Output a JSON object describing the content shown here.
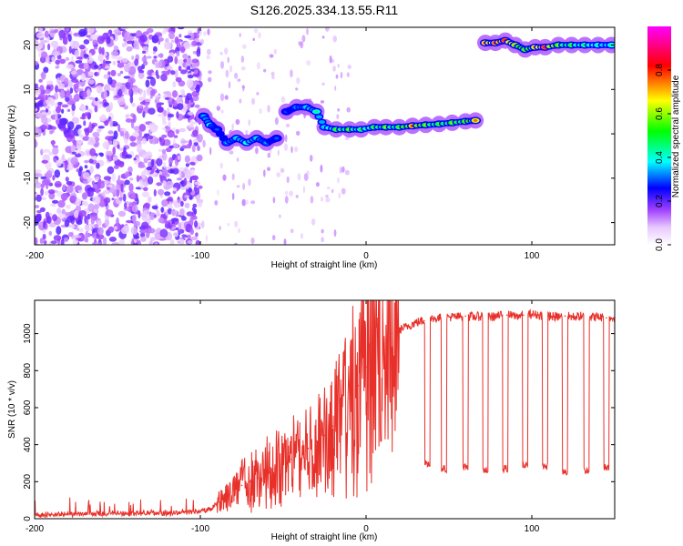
{
  "chart_data": [
    {
      "type": "heatmap",
      "title": "S126.2025.334.13.55.R11",
      "xlabel": "Height of straight line (km)",
      "ylabel": "Frequency (Hz)",
      "xlim": [
        -200,
        150
      ],
      "ylim": [
        -25,
        24
      ],
      "xticks": [
        -200,
        -100,
        0,
        100
      ],
      "yticks": [
        -20,
        -10,
        0,
        10,
        20
      ],
      "colorbar": {
        "label": "Normalized spectral amplitude",
        "range": [
          0,
          1
        ],
        "ticks": [
          0.0,
          0.2,
          0.4,
          0.6,
          0.8
        ],
        "stops": [
          "#ffffff",
          "#cc66ff",
          "#0000ff",
          "#00ffff",
          "#00ff00",
          "#ffff00",
          "#ff0000",
          "#ff00ff"
        ]
      },
      "signal_track": [
        {
          "x": -98,
          "y": 4,
          "amp": 0.35
        },
        {
          "x": -94,
          "y": 2,
          "amp": 0.45
        },
        {
          "x": -90,
          "y": 1,
          "amp": 0.3
        },
        {
          "x": -84,
          "y": -2,
          "amp": 0.35
        },
        {
          "x": -78,
          "y": -1,
          "amp": 0.4
        },
        {
          "x": -72,
          "y": -2,
          "amp": 0.45
        },
        {
          "x": -66,
          "y": -1,
          "amp": 0.4
        },
        {
          "x": -60,
          "y": -2,
          "amp": 0.35
        },
        {
          "x": -54,
          "y": -1,
          "amp": 0.3
        },
        {
          "x": -48,
          "y": 5,
          "amp": 0.3
        },
        {
          "x": -42,
          "y": 6,
          "amp": 0.35
        },
        {
          "x": -36,
          "y": 6,
          "amp": 0.4
        },
        {
          "x": -30,
          "y": 5,
          "amp": 0.45
        },
        {
          "x": -25,
          "y": 1.5,
          "amp": 0.4
        },
        {
          "x": -18,
          "y": 1,
          "amp": 0.55
        },
        {
          "x": -10,
          "y": 1,
          "amp": 0.6
        },
        {
          "x": -3,
          "y": 1,
          "amp": 0.5
        },
        {
          "x": 5,
          "y": 1.5,
          "amp": 0.55
        },
        {
          "x": 12,
          "y": 1.5,
          "amp": 0.6
        },
        {
          "x": 20,
          "y": 1.5,
          "amp": 0.55
        },
        {
          "x": 28,
          "y": 1.8,
          "amp": 0.8
        },
        {
          "x": 36,
          "y": 2,
          "amp": 0.6
        },
        {
          "x": 44,
          "y": 2.2,
          "amp": 0.55
        },
        {
          "x": 52,
          "y": 2.5,
          "amp": 0.6
        },
        {
          "x": 60,
          "y": 2.8,
          "amp": 0.6
        },
        {
          "x": 66,
          "y": 3,
          "amp": 0.75
        },
        {
          "x": 72,
          "y": 20.5,
          "amp": 0.8
        },
        {
          "x": 78,
          "y": 20.5,
          "amp": 0.85
        },
        {
          "x": 84,
          "y": 21,
          "amp": 0.9
        },
        {
          "x": 90,
          "y": 20,
          "amp": 0.7
        },
        {
          "x": 96,
          "y": 19,
          "amp": 0.6
        },
        {
          "x": 102,
          "y": 19.5,
          "amp": 0.75
        },
        {
          "x": 108,
          "y": 19.5,
          "amp": 0.9
        },
        {
          "x": 116,
          "y": 20,
          "amp": 0.6
        },
        {
          "x": 124,
          "y": 20,
          "amp": 0.55
        },
        {
          "x": 132,
          "y": 20,
          "amp": 0.5
        },
        {
          "x": 140,
          "y": 20,
          "amp": 0.45
        },
        {
          "x": 148,
          "y": 20,
          "amp": 0.45
        }
      ]
    },
    {
      "type": "line",
      "xlabel": "Height of straight line (km)",
      "ylabel": "SNR (10 * v/v)",
      "xlim": [
        -200,
        150
      ],
      "ylim": [
        0,
        1180
      ],
      "xticks": [
        -200,
        -100,
        0,
        100
      ],
      "yticks": [
        0,
        200,
        400,
        600,
        800,
        1000
      ],
      "series": [
        {
          "name": "SNR",
          "color": "#e8302a",
          "x": [
            -200,
            -190,
            -180,
            -170,
            -160,
            -150,
            -140,
            -130,
            -120,
            -110,
            -100,
            -95,
            -90,
            -85,
            -80,
            -75,
            -70,
            -65,
            -60,
            -55,
            -50,
            -45,
            -40,
            -35,
            -30,
            -25,
            -20,
            -15,
            -10,
            -5,
            0,
            5,
            10,
            15,
            20,
            25,
            30,
            35,
            40,
            45,
            50,
            55,
            60,
            65,
            70,
            75,
            80,
            85,
            90,
            95,
            100,
            105,
            110,
            115,
            120,
            125,
            130,
            135,
            140,
            145,
            150
          ],
          "y": [
            20,
            22,
            25,
            24,
            26,
            30,
            28,
            32,
            30,
            35,
            40,
            50,
            80,
            110,
            160,
            180,
            200,
            220,
            250,
            270,
            300,
            320,
            340,
            380,
            420,
            450,
            500,
            550,
            650,
            720,
            820,
            880,
            950,
            1000,
            1020,
            1040,
            1060,
            1070,
            1080,
            1085,
            1090,
            1090,
            1095,
            1090,
            1095,
            1090,
            1095,
            1100,
            1095,
            1100,
            1105,
            1100,
            1095,
            1090,
            1095,
            1090,
            1095,
            1090,
            1090,
            1085,
            1085
          ]
        }
      ],
      "dropouts": [
        {
          "x": 37,
          "y": 300
        },
        {
          "x": 47,
          "y": 270
        },
        {
          "x": 60,
          "y": 280
        },
        {
          "x": 72,
          "y": 260
        },
        {
          "x": 84,
          "y": 270
        },
        {
          "x": 96,
          "y": 290
        },
        {
          "x": 108,
          "y": 280
        },
        {
          "x": 120,
          "y": 250
        },
        {
          "x": 133,
          "y": 260
        },
        {
          "x": 145,
          "y": 280
        }
      ]
    }
  ]
}
